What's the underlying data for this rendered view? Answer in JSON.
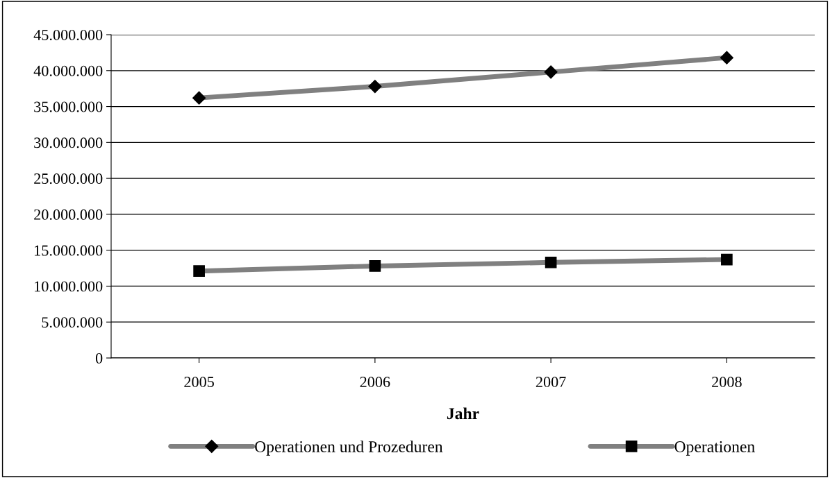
{
  "chart_data": {
    "type": "line",
    "xlabel": "Jahr",
    "categories": [
      "2005",
      "2006",
      "2007",
      "2008"
    ],
    "series": [
      {
        "name": "Operationen und Prozeduren",
        "color": "#808080",
        "marker": "diamond",
        "values": [
          36200000,
          37800000,
          39800000,
          41800000
        ]
      },
      {
        "name": "Operationen",
        "color": "#808080",
        "marker": "square",
        "values": [
          12100000,
          12800000,
          13300000,
          13700000
        ]
      }
    ],
    "ylim": [
      0,
      45000000
    ],
    "yticks": [
      {
        "value": 0,
        "label": "0"
      },
      {
        "value": 5000000,
        "label": "5.000.000"
      },
      {
        "value": 10000000,
        "label": "10.000.000"
      },
      {
        "value": 15000000,
        "label": "15.000.000"
      },
      {
        "value": 20000000,
        "label": "20.000.000"
      },
      {
        "value": 25000000,
        "label": "25.000.000"
      },
      {
        "value": 30000000,
        "label": "30.000.000"
      },
      {
        "value": 35000000,
        "label": "35.000.000"
      },
      {
        "value": 40000000,
        "label": "40.000.000"
      },
      {
        "value": 45000000,
        "label": "45.000.000"
      }
    ],
    "grid": "y",
    "legend": "bottom"
  }
}
